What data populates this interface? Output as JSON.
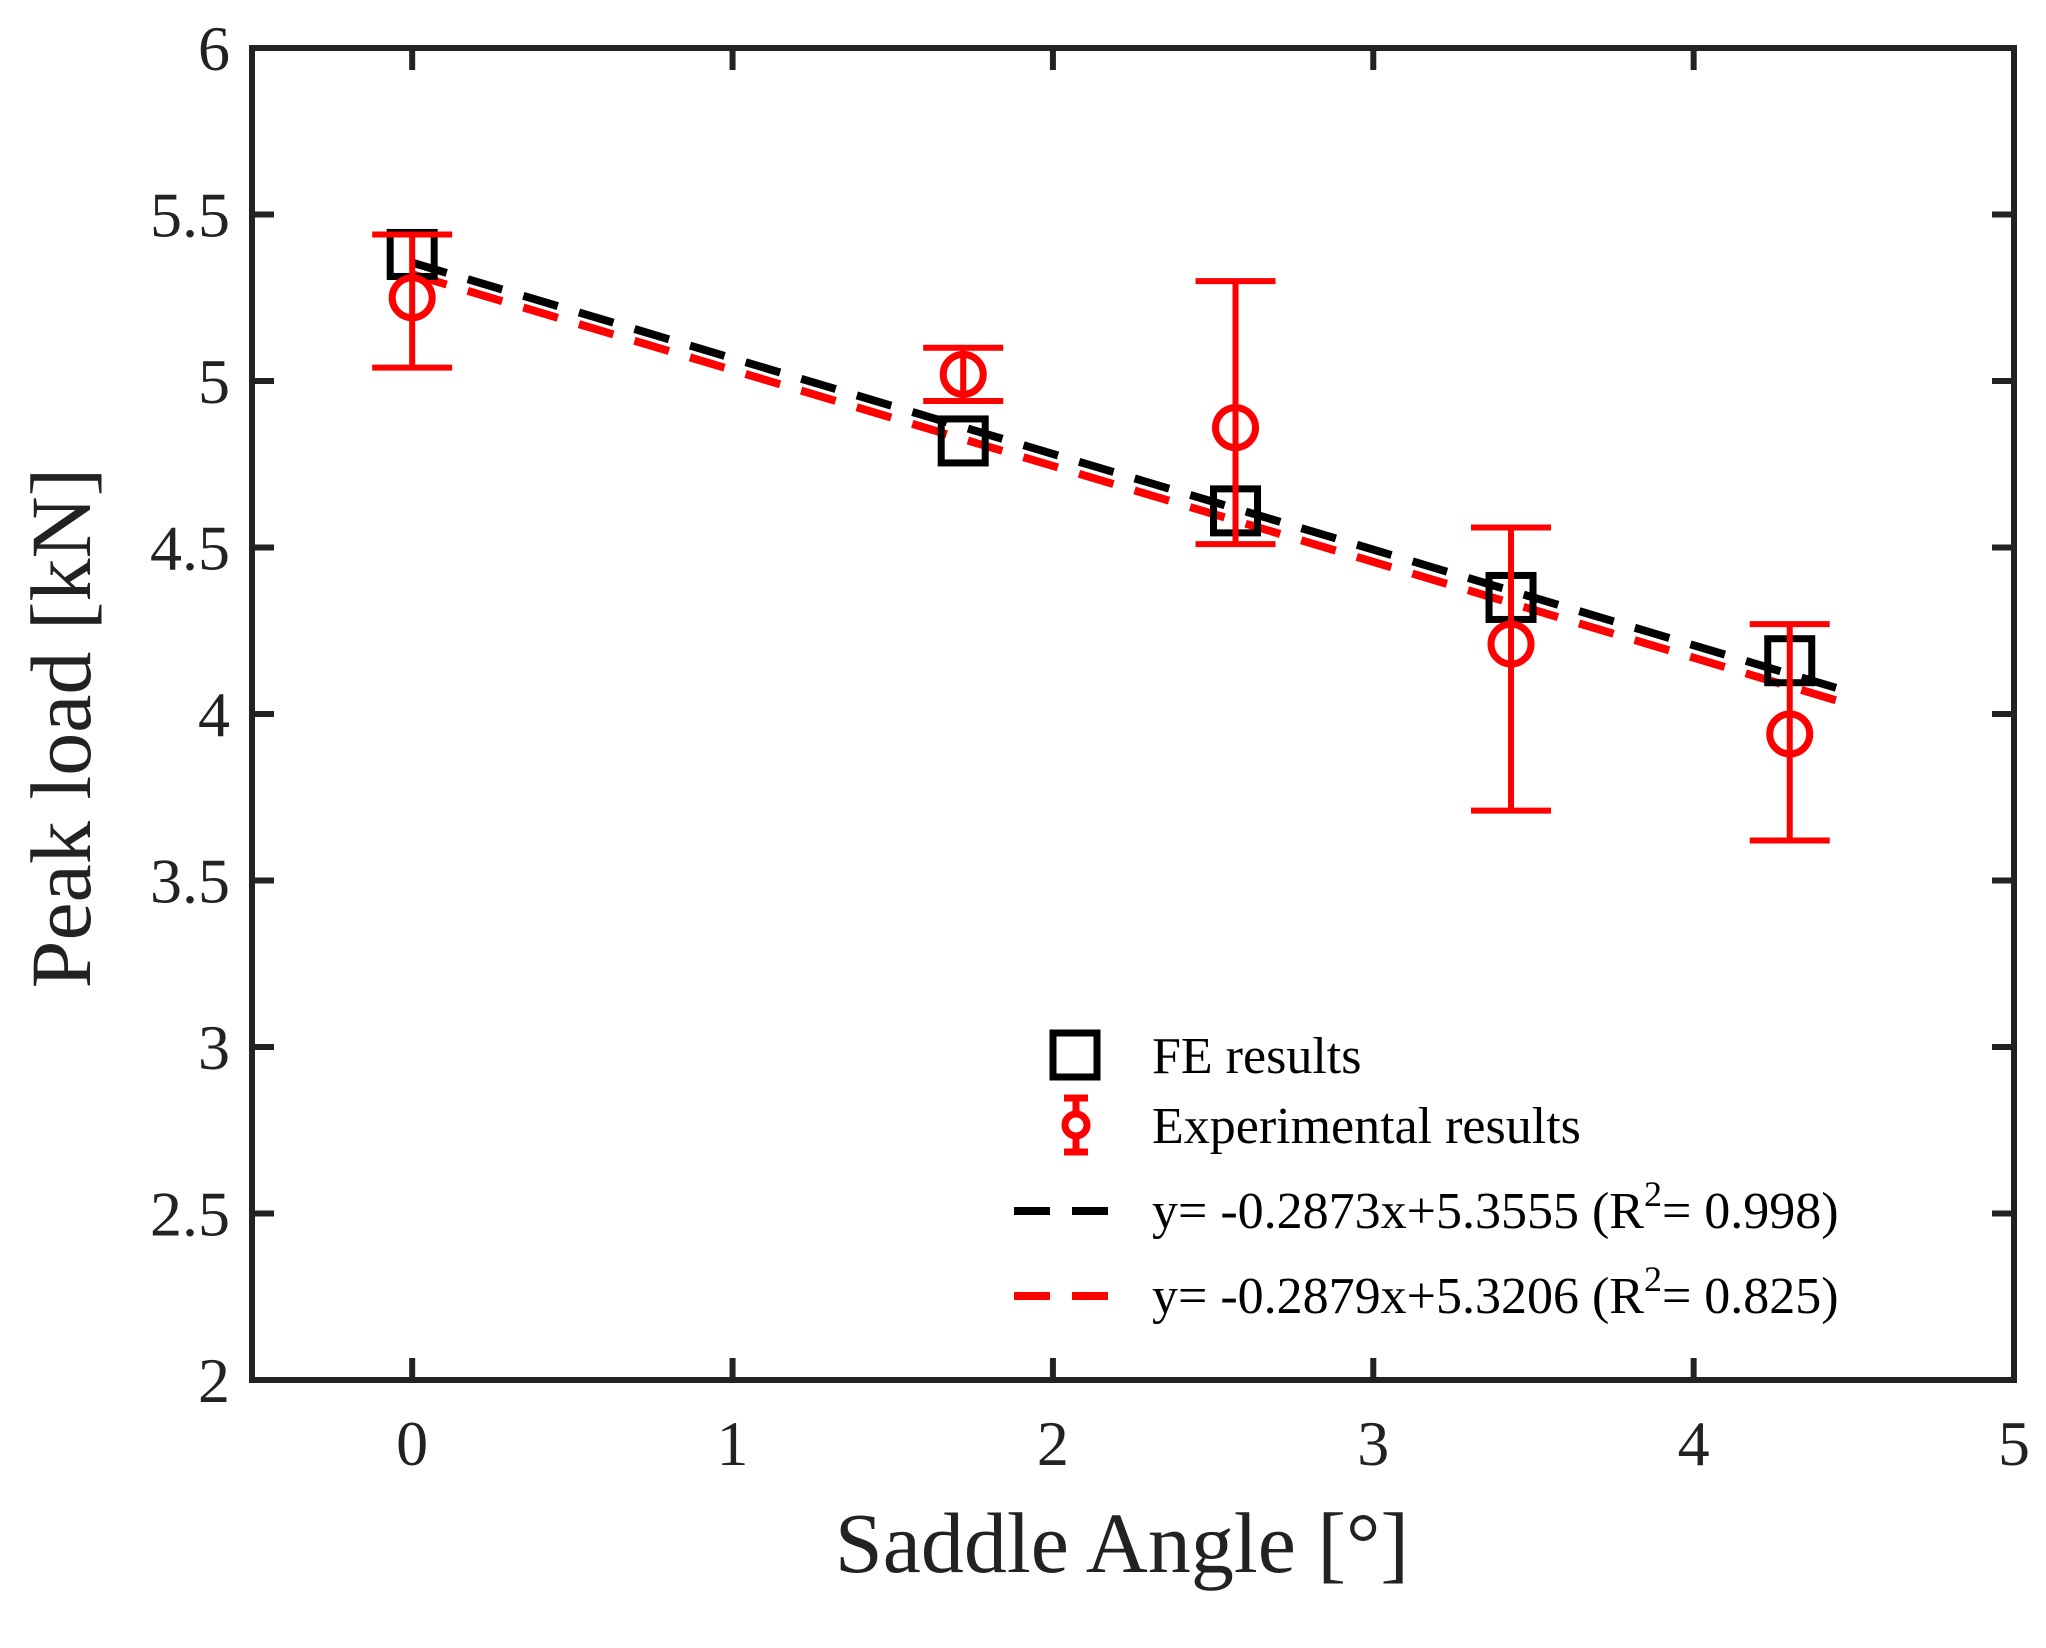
{
  "chart_data": {
    "type": "scatter",
    "xlabel": "Saddle Angle [°]",
    "ylabel": "Peak load [kN]",
    "xlim": [
      -0.5,
      5
    ],
    "ylim": [
      2,
      6
    ],
    "xticks": [
      0,
      1,
      2,
      3,
      4,
      5
    ],
    "yticks": [
      2,
      2.5,
      3,
      3.5,
      4,
      4.5,
      5,
      5.5,
      6
    ],
    "xtick_labels": [
      "0",
      "1",
      "2",
      "3",
      "4",
      "5"
    ],
    "ytick_labels": [
      "2",
      "2.5",
      "3",
      "3.5",
      "4",
      "4.5",
      "5",
      "5.5",
      "6"
    ],
    "grid": false,
    "legend_position": "bottom-right",
    "colors": {
      "fe": "#000000",
      "exp": "#ff0000",
      "axis": "#222222"
    },
    "series": [
      {
        "name": "FE results",
        "marker": "square",
        "color": "#000000",
        "x": [
          0,
          1.72,
          2.57,
          3.43,
          4.3
        ],
        "y": [
          5.38,
          4.82,
          4.61,
          4.35,
          4.16
        ]
      },
      {
        "name": "Experimental results",
        "marker": "circle-errorbar",
        "color": "#ff0000",
        "x": [
          0,
          1.72,
          2.57,
          3.43,
          4.3
        ],
        "y": [
          5.25,
          5.02,
          4.86,
          4.21,
          3.94
        ],
        "err_low": [
          5.04,
          4.94,
          4.51,
          3.71,
          3.62
        ],
        "err_high": [
          5.44,
          5.1,
          5.3,
          4.56,
          4.27
        ]
      }
    ],
    "fits": [
      {
        "label_prefix": "y= -0.2873x+5.3555 (R",
        "label_sup": "2",
        "label_suffix": "= 0.998)",
        "slope": -0.2873,
        "intercept": 5.3555,
        "x_range": [
          0,
          4.5
        ],
        "color": "#000000"
      },
      {
        "label_prefix": "y= -0.2879x+5.3206 (R",
        "label_sup": "2",
        "label_suffix": "= 0.825)",
        "slope": -0.2879,
        "intercept": 5.3206,
        "x_range": [
          0,
          4.5
        ],
        "color": "#ff0000"
      }
    ]
  }
}
